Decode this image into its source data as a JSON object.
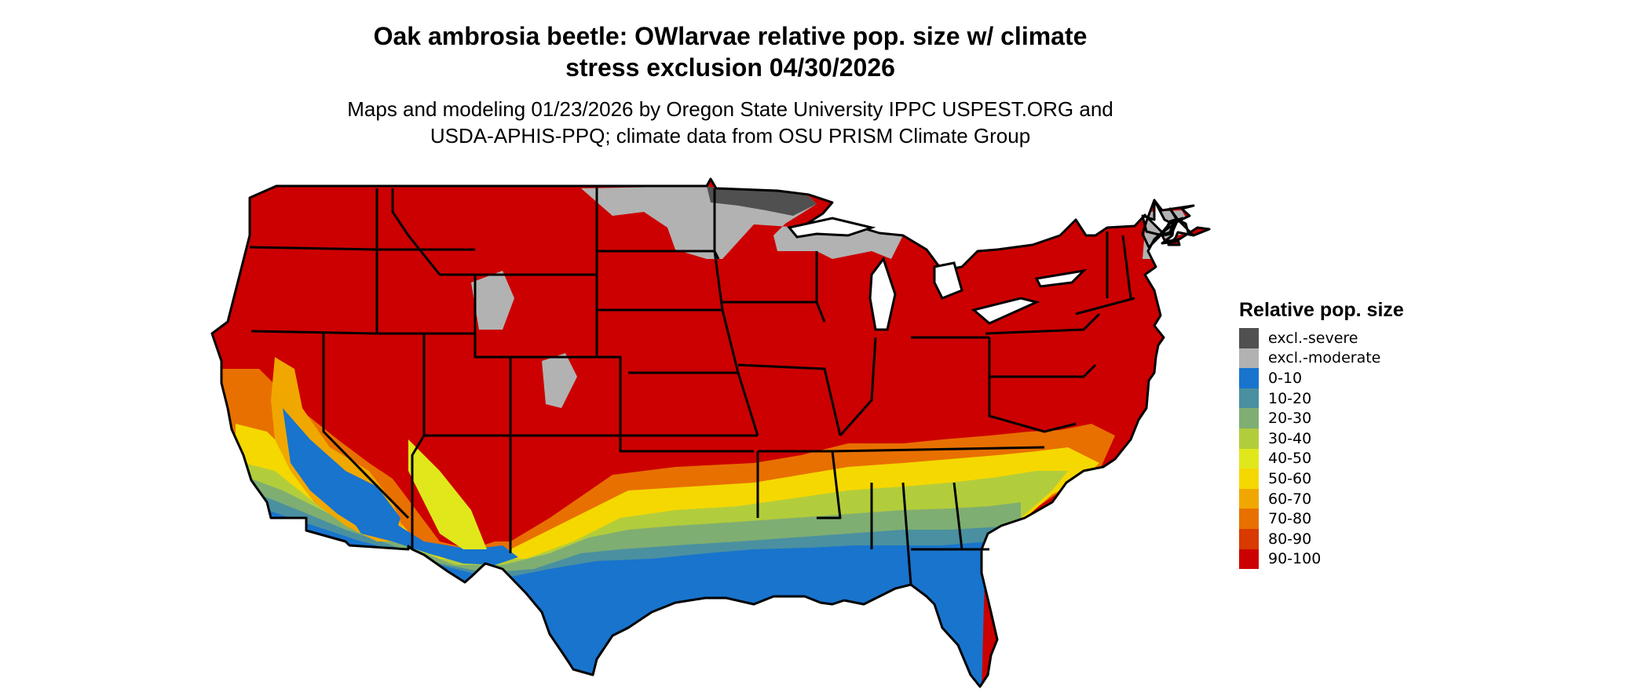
{
  "title": {
    "line1": "Oak ambrosia beetle: OWlarvae relative pop. size w/ climate",
    "line2": "stress exclusion 04/30/2026"
  },
  "subtitle": {
    "line1": "Maps and modeling 01/23/2026 by Oregon State University IPPC USPEST.ORG and",
    "line2": "USDA-APHIS-PPQ; climate data from OSU PRISM Climate Group"
  },
  "legend": {
    "title": "Relative pop. size",
    "items": [
      {
        "label": "excl.-severe",
        "color": "#505050"
      },
      {
        "label": "excl.-moderate",
        "color": "#b2b2b2"
      },
      {
        "label": "0-10",
        "color": "#1874cd"
      },
      {
        "label": "10-20",
        "color": "#4a90a0"
      },
      {
        "label": "20-30",
        "color": "#7fae72"
      },
      {
        "label": "30-40",
        "color": "#b2cd3c"
      },
      {
        "label": "40-50",
        "color": "#e0e81c"
      },
      {
        "label": "50-60",
        "color": "#f5d800"
      },
      {
        "label": "60-70",
        "color": "#f0a800"
      },
      {
        "label": "70-80",
        "color": "#e87000"
      },
      {
        "label": "80-90",
        "color": "#d83a00"
      },
      {
        "label": "90-100",
        "color": "#cc0000"
      }
    ]
  },
  "map": {
    "region": "Contiguous United States",
    "boundary_color": "#000000",
    "dominant_class": "90-100"
  }
}
